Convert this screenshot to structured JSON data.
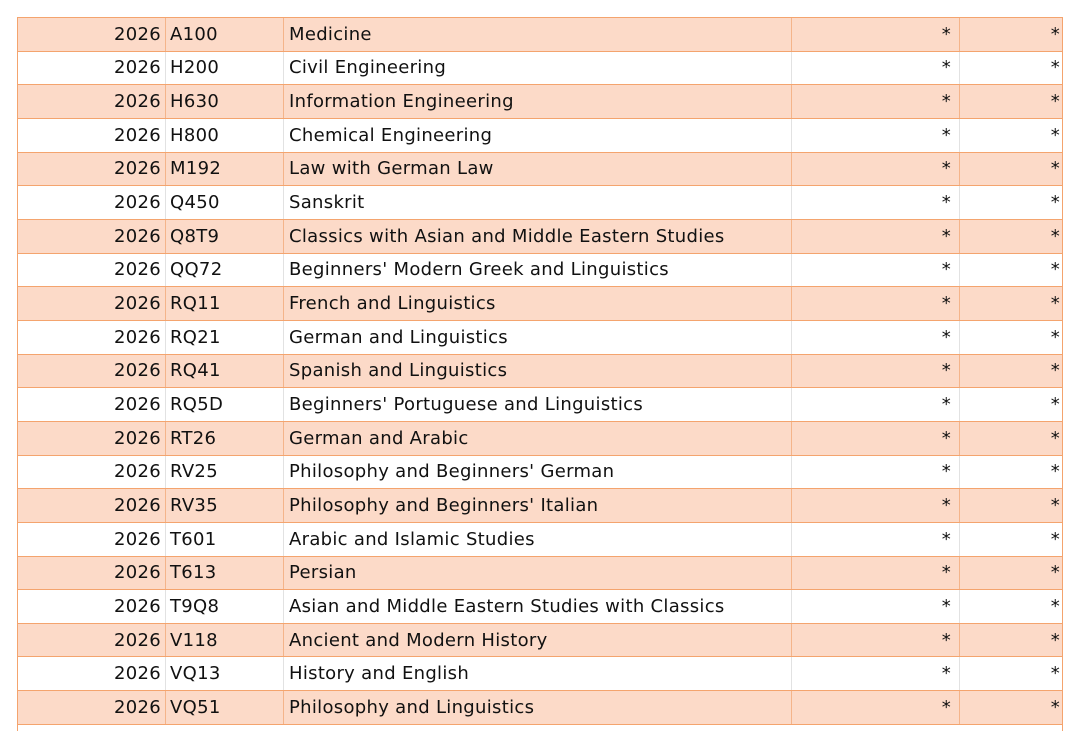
{
  "table": {
    "rows": [
      [
        "2026",
        "A100",
        "Medicine",
        "*",
        "*"
      ],
      [
        "2026",
        "H200",
        "Civil Engineering",
        "*",
        "*"
      ],
      [
        "2026",
        "H630",
        "Information Engineering",
        "*",
        "*"
      ],
      [
        "2026",
        "H800",
        "Chemical Engineering",
        "*",
        "*"
      ],
      [
        "2026",
        "M192",
        "Law with German Law",
        "*",
        "*"
      ],
      [
        "2026",
        "Q450",
        "Sanskrit",
        "*",
        "*"
      ],
      [
        "2026",
        "Q8T9",
        "Classics with Asian and Middle Eastern Studies",
        "*",
        "*"
      ],
      [
        "2026",
        "QQ72",
        "Beginners' Modern Greek and Linguistics",
        "*",
        "*"
      ],
      [
        "2026",
        "RQ11",
        "French and Linguistics",
        "*",
        "*"
      ],
      [
        "2026",
        "RQ21",
        "German and Linguistics",
        "*",
        "*"
      ],
      [
        "2026",
        "RQ41",
        "Spanish and Linguistics",
        "*",
        "*"
      ],
      [
        "2026",
        "RQ5D",
        "Beginners' Portuguese and Linguistics",
        "*",
        "*"
      ],
      [
        "2026",
        "RT26",
        "German and Arabic",
        "*",
        "*"
      ],
      [
        "2026",
        "RV25",
        "Philosophy and Beginners' German",
        "*",
        "*"
      ],
      [
        "2026",
        "RV35",
        "Philosophy and Beginners' Italian",
        "*",
        "*"
      ],
      [
        "2026",
        "T601",
        "Arabic and Islamic Studies",
        "*",
        "*"
      ],
      [
        "2026",
        "T613",
        "Persian",
        "*",
        "*"
      ],
      [
        "2026",
        "T9Q8",
        "Asian and Middle Eastern Studies with Classics",
        "*",
        "*"
      ],
      [
        "2026",
        "V118",
        "Ancient and Modern History",
        "*",
        "*"
      ],
      [
        "2026",
        "VQ13",
        "History and English",
        "*",
        "*"
      ],
      [
        "2026",
        "VQ51",
        "Philosophy and Linguistics",
        "*",
        "*"
      ]
    ]
  }
}
